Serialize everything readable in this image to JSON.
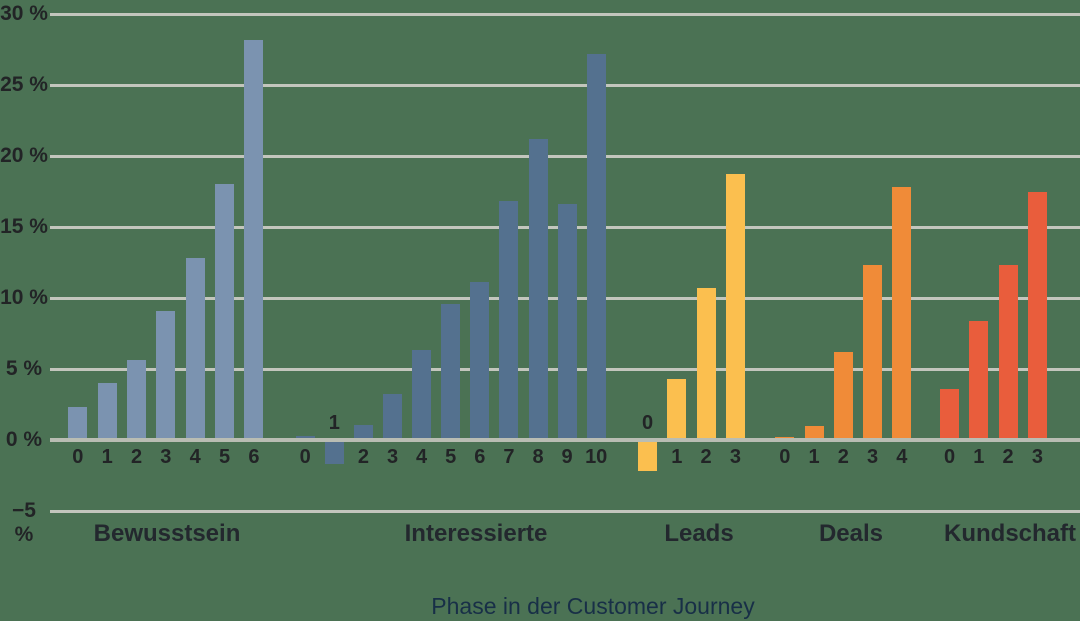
{
  "chart_data": {
    "type": "bar",
    "title": "",
    "xlabel": "Phase in der Customer Journey",
    "ylabel": "",
    "unit": "%",
    "grid": true,
    "legend": false,
    "y_axis": {
      "min": -5,
      "max": 30,
      "step": 5,
      "ticks": [
        30,
        25,
        20,
        15,
        10,
        5,
        0,
        -5
      ],
      "tick_labels": [
        "30 %",
        "25 %",
        "20 %",
        "15 %",
        "10 %",
        "5 %",
        "0 %",
        "−5 %"
      ]
    },
    "groups": [
      {
        "label": "Bewusstsein",
        "slug": "bewusstsein",
        "color": "#7b93b0",
        "categories": [
          "0",
          "1",
          "2",
          "3",
          "4",
          "5",
          "6"
        ],
        "values": [
          2.3,
          4.0,
          5.6,
          9.1,
          12.8,
          18.0,
          28.2
        ]
      },
      {
        "label": "Interessierte",
        "slug": "interessierte",
        "color": "#54718f",
        "categories": [
          "0",
          "1",
          "2",
          "3",
          "4",
          "5",
          "6",
          "7",
          "8",
          "9",
          "10"
        ],
        "values": [
          0.25,
          -1.7,
          1.05,
          3.25,
          6.35,
          9.6,
          11.15,
          16.8,
          21.2,
          16.6,
          27.2
        ]
      },
      {
        "label": "Leads",
        "slug": "leads",
        "color": "#fbbf4f",
        "categories": [
          "0",
          "1",
          "2",
          "3"
        ],
        "values": [
          -2.2,
          4.3,
          10.7,
          18.7
        ]
      },
      {
        "label": "Deals",
        "slug": "deals",
        "color": "#f08b38",
        "categories": [
          "0",
          "1",
          "2",
          "3",
          "4"
        ],
        "values": [
          0.2,
          1.0,
          6.2,
          12.3,
          17.8
        ]
      },
      {
        "label": "Kundschaft",
        "slug": "kundschaft",
        "color": "#e95d3c",
        "categories": [
          "0",
          "1",
          "2",
          "3"
        ],
        "values": [
          3.6,
          8.35,
          12.3,
          17.5
        ]
      }
    ],
    "colors": {
      "background": "#4b7254",
      "gridline": "#c3c6bd",
      "axis_line": "#b9bdb3",
      "tick_text": "#222426",
      "group_label_text": "#23282e",
      "axis_title_text": "#182f47"
    }
  }
}
